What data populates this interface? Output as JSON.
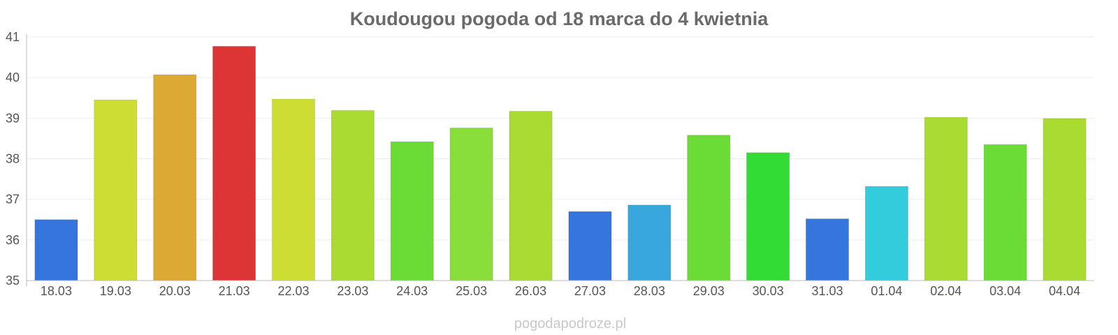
{
  "chart_data": {
    "type": "bar",
    "title": "Koudougou pogoda od 18 marca do 4 kwietnia",
    "xlabel": "",
    "ylabel": "",
    "ylim": [
      35,
      41
    ],
    "yticks": [
      "35",
      "36",
      "37",
      "38",
      "39",
      "40",
      "41"
    ],
    "grid": true,
    "categories": [
      "18.03",
      "19.03",
      "20.03",
      "21.03",
      "22.03",
      "23.03",
      "24.03",
      "25.03",
      "26.03",
      "27.03",
      "28.03",
      "29.03",
      "30.03",
      "31.03",
      "01.04",
      "02.04",
      "03.04",
      "04.04"
    ],
    "values": [
      36.5,
      39.45,
      40.07,
      40.77,
      39.47,
      39.19,
      38.42,
      38.76,
      39.17,
      36.7,
      36.86,
      38.58,
      38.15,
      36.52,
      37.32,
      39.02,
      38.35,
      38.99
    ],
    "colors": [
      "#3476de",
      "#cddd33",
      "#dca934",
      "#dd3535",
      "#cddd33",
      "#a9db33",
      "#6adc35",
      "#8ade39",
      "#a9db33",
      "#3476de",
      "#37a7dd",
      "#6adc35",
      "#33dc34",
      "#3476de",
      "#33ccdc",
      "#a9db33",
      "#6adc35",
      "#a9db33"
    ]
  },
  "watermark": "pogodapodroze.pl"
}
